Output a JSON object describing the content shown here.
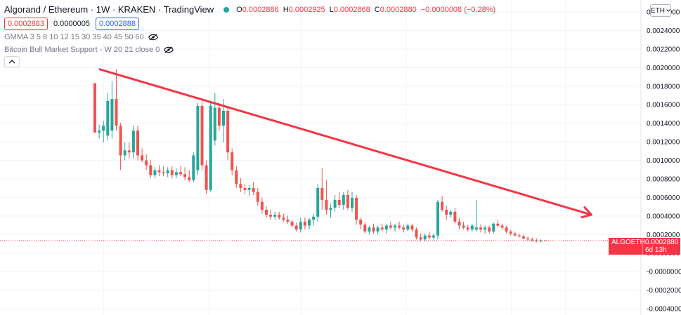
{
  "header": {
    "title": "Algorand / Ethereum · 1W · KRAKEN · TradingView",
    "ohlc": {
      "o_label": "O",
      "o": "0.0002886",
      "h_label": "H",
      "h": "0.0002925",
      "l_label": "L",
      "l": "0.0002868",
      "c_label": "C",
      "c": "0.0002880",
      "change": "−0.0000008 (−0.28%)"
    },
    "bid": "0.0002883",
    "spread": "0.0000005",
    "ask": "0.0002888"
  },
  "indicators": [
    "GMMA 3 5 8 10 12 15 30 35 40 45 50 60",
    "Bitcoin Bull Market Support - W 20 21 close 0"
  ],
  "currency": "ETH",
  "last_price": {
    "symbol": "ALGOETH",
    "price": "0.0002880",
    "countdown": "6d 13h"
  },
  "colors": {
    "up": "#26a69a",
    "down": "#ef5350",
    "trendline": "#f23645",
    "grid": "#f0f3fa"
  },
  "chart_data": {
    "type": "candlestick",
    "y_ticks": [
      "0.0026000",
      "0.0024000",
      "0.0022000",
      "0.0020000",
      "0.0018000",
      "0.0016000",
      "0.0014000",
      "0.0012000",
      "0.0010000",
      "0.0008000",
      "0.0006000",
      "0.0004000",
      "0.0002000",
      "0.0000000",
      "-0.0000000",
      "-0.0002000",
      "-0.0004000"
    ],
    "ylim": [
      -0.0004,
      0.0026
    ],
    "candles": [
      [
        0.00188,
        0.00188,
        0.00138,
        0.00138
      ],
      [
        0.00138,
        0.00146,
        0.00132,
        0.0014
      ],
      [
        0.0014,
        0.0015,
        0.00128,
        0.00145
      ],
      [
        0.00135,
        0.00178,
        0.0013,
        0.0017
      ],
      [
        0.0014,
        0.0019,
        0.00132,
        0.00172
      ],
      [
        0.00172,
        0.00202,
        0.0014,
        0.00145
      ],
      [
        0.00145,
        0.00148,
        0.001,
        0.00115
      ],
      [
        0.00115,
        0.00128,
        0.0011,
        0.0012
      ],
      [
        0.0012,
        0.00128,
        0.00112,
        0.00118
      ],
      [
        0.00118,
        0.00145,
        0.00112,
        0.0014
      ],
      [
        0.0014,
        0.00145,
        0.0011,
        0.00115
      ],
      [
        0.00115,
        0.00122,
        0.00108,
        0.0011
      ],
      [
        0.0011,
        0.00116,
        0.001,
        0.00105
      ],
      [
        0.00105,
        0.0011,
        0.00092,
        0.00095
      ],
      [
        0.00095,
        0.00103,
        0.00092,
        0.001
      ],
      [
        0.001,
        0.00105,
        0.00094,
        0.00098
      ],
      [
        0.00098,
        0.00104,
        0.00094,
        0.00097
      ],
      [
        0.00097,
        0.00103,
        0.00093,
        0.001
      ],
      [
        0.001,
        0.00104,
        0.00092,
        0.00095
      ],
      [
        0.00095,
        0.00102,
        0.00092,
        0.00098
      ],
      [
        0.00098,
        0.00104,
        0.00094,
        0.00096
      ],
      [
        0.00096,
        0.00103,
        0.0009,
        0.00093
      ],
      [
        0.00093,
        0.001,
        0.00088,
        0.0009
      ],
      [
        0.0009,
        0.00118,
        0.00088,
        0.00115
      ],
      [
        0.001,
        0.00168,
        0.00095,
        0.00165
      ],
      [
        0.00165,
        0.0017,
        0.001,
        0.00105
      ],
      [
        0.00105,
        0.0011,
        0.00076,
        0.0008
      ],
      [
        0.0008,
        0.0017,
        0.00078,
        0.00165
      ],
      [
        0.0013,
        0.00178,
        0.00125,
        0.00163
      ],
      [
        0.00163,
        0.00168,
        0.0014,
        0.00145
      ],
      [
        0.00145,
        0.00172,
        0.00128,
        0.0016
      ],
      [
        0.0016,
        0.00165,
        0.0011,
        0.00118
      ],
      [
        0.00118,
        0.00122,
        0.00095,
        0.001
      ],
      [
        0.001,
        0.00104,
        0.00082,
        0.00086
      ],
      [
        0.00086,
        0.00092,
        0.00078,
        0.00082
      ],
      [
        0.00082,
        0.00086,
        0.00076,
        0.0008
      ],
      [
        0.0008,
        0.00085,
        0.00074,
        0.00082
      ],
      [
        0.00082,
        0.00088,
        0.00075,
        0.00078
      ],
      [
        0.00078,
        0.00082,
        0.00064,
        0.00068
      ],
      [
        0.00068,
        0.00072,
        0.00056,
        0.0006
      ],
      [
        0.0006,
        0.00064,
        0.00052,
        0.00055
      ],
      [
        0.00055,
        0.0006,
        0.0005,
        0.00053
      ],
      [
        0.00053,
        0.00058,
        0.0005,
        0.00055
      ],
      [
        0.00055,
        0.00058,
        0.0005,
        0.00052
      ],
      [
        0.00052,
        0.00056,
        0.00048,
        0.0005
      ],
      [
        0.0005,
        0.00054,
        0.00046,
        0.00048
      ],
      [
        0.00048,
        0.0005,
        0.00042,
        0.00044
      ],
      [
        0.00044,
        0.00047,
        0.00038,
        0.0004
      ],
      [
        0.0004,
        0.00052,
        0.00037,
        0.00048
      ],
      [
        0.00048,
        0.00052,
        0.0004,
        0.00044
      ],
      [
        0.00044,
        0.00052,
        0.0004,
        0.0005
      ],
      [
        0.0005,
        0.00056,
        0.00044,
        0.00053
      ],
      [
        0.00053,
        0.00086,
        0.00048,
        0.00082
      ],
      [
        0.00082,
        0.00102,
        0.0006,
        0.0007
      ],
      [
        0.0007,
        0.0009,
        0.00055,
        0.0006
      ],
      [
        0.0006,
        0.00066,
        0.00052,
        0.00062
      ],
      [
        0.00062,
        0.00075,
        0.00058,
        0.0007
      ],
      [
        0.0007,
        0.00078,
        0.00062,
        0.00065
      ],
      [
        0.00065,
        0.00078,
        0.0006,
        0.00075
      ],
      [
        0.00075,
        0.0008,
        0.0006,
        0.00062
      ],
      [
        0.00062,
        0.00078,
        0.00058,
        0.00072
      ],
      [
        0.00072,
        0.00075,
        0.00045,
        0.0005
      ],
      [
        0.0005,
        0.00052,
        0.0004,
        0.00045
      ],
      [
        0.00045,
        0.00048,
        0.00036,
        0.00038
      ],
      [
        0.00038,
        0.00044,
        0.00035,
        0.00042
      ],
      [
        0.00042,
        0.00046,
        0.00036,
        0.00038
      ],
      [
        0.00038,
        0.00044,
        0.00035,
        0.00042
      ],
      [
        0.00042,
        0.00046,
        0.00038,
        0.0004
      ],
      [
        0.0004,
        0.00046,
        0.00036,
        0.00044
      ],
      [
        0.00044,
        0.00048,
        0.0004,
        0.00042
      ],
      [
        0.00042,
        0.00046,
        0.00038,
        0.00044
      ],
      [
        0.00044,
        0.00048,
        0.0004,
        0.00042
      ],
      [
        0.00042,
        0.00045,
        0.00037,
        0.0004
      ],
      [
        0.0004,
        0.00046,
        0.00038,
        0.00044
      ],
      [
        0.00044,
        0.00046,
        0.00038,
        0.0004
      ],
      [
        0.0004,
        0.00042,
        0.0003,
        0.00032
      ],
      [
        0.00032,
        0.00036,
        0.00028,
        0.0003
      ],
      [
        0.0003,
        0.00036,
        0.00028,
        0.00034
      ],
      [
        0.00034,
        0.00038,
        0.0003,
        0.00032
      ],
      [
        0.00032,
        0.00036,
        0.0003,
        0.00034
      ],
      [
        0.00034,
        0.0007,
        0.0003,
        0.00068
      ],
      [
        0.00068,
        0.00074,
        0.00058,
        0.0006
      ],
      [
        0.0006,
        0.00064,
        0.0005,
        0.00055
      ],
      [
        0.00055,
        0.0006,
        0.00052,
        0.00058
      ],
      [
        0.00058,
        0.00062,
        0.00046,
        0.00048
      ],
      [
        0.00048,
        0.00052,
        0.0004,
        0.00044
      ],
      [
        0.00044,
        0.00048,
        0.0004,
        0.00042
      ],
      [
        0.00042,
        0.00045,
        0.00038,
        0.0004
      ],
      [
        0.0004,
        0.00046,
        0.00038,
        0.00044
      ],
      [
        0.0004,
        0.0007,
        0.00038,
        0.00042
      ],
      [
        0.00042,
        0.00045,
        0.00037,
        0.0004
      ],
      [
        0.0004,
        0.00044,
        0.00036,
        0.00042
      ],
      [
        0.00042,
        0.00044,
        0.00036,
        0.00038
      ],
      [
        0.00038,
        0.00047,
        0.00036,
        0.00046
      ],
      [
        0.00046,
        0.0005,
        0.00042,
        0.00044
      ],
      [
        0.00044,
        0.00046,
        0.0004,
        0.00042
      ],
      [
        0.00042,
        0.00044,
        0.00036,
        0.00038
      ],
      [
        0.00038,
        0.0004,
        0.00034,
        0.00036
      ],
      [
        0.00036,
        0.00038,
        0.00033,
        0.00034
      ],
      [
        0.00034,
        0.00036,
        0.00032,
        0.00033
      ],
      [
        0.00033,
        0.00035,
        0.0003,
        0.00031
      ],
      [
        0.00031,
        0.00033,
        0.00029,
        0.0003
      ],
      [
        0.0003,
        0.00032,
        0.00028,
        0.00029
      ],
      [
        0.00029,
        0.00031,
        0.00027,
        0.00028
      ],
      [
        0.00028,
        0.0003,
        0.00027,
        0.00029
      ],
      [
        0.000289,
        0.0002925,
        0.0002868,
        0.000288
      ]
    ],
    "trendline": {
      "start": [
        0,
        0.00202
      ],
      "end": [
        113,
        0.00055
      ]
    }
  }
}
